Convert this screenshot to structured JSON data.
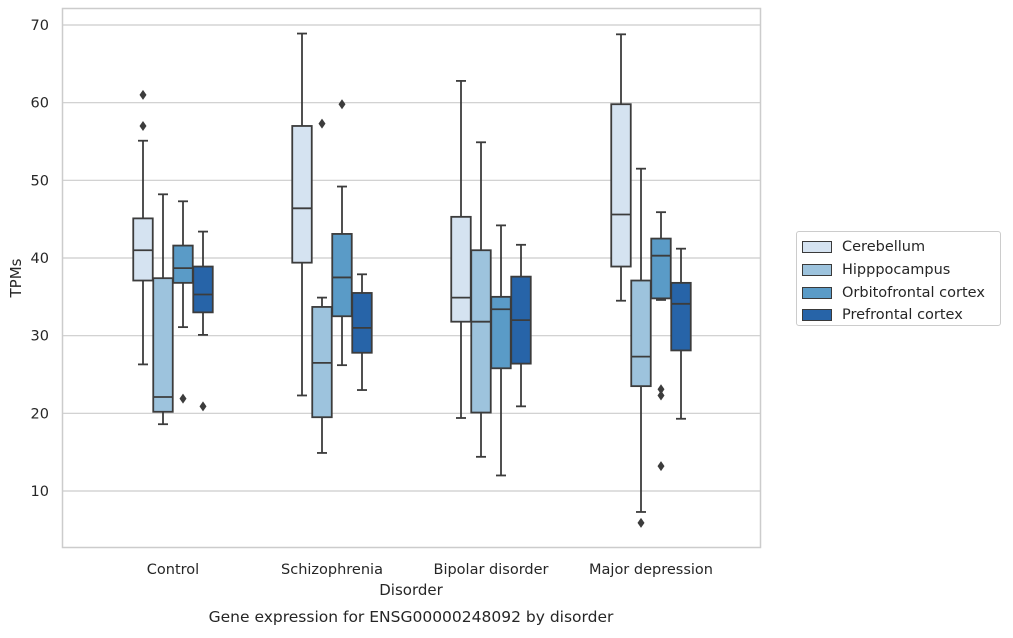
{
  "chart_data": {
    "type": "boxplot",
    "title": "Gene expression for ENSG00000248092 by disorder",
    "xlabel": "Disorder",
    "ylabel": "TPMs",
    "ylim": [
      2.5,
      72
    ],
    "yticks": [
      10,
      20,
      30,
      40,
      50,
      60,
      70
    ],
    "grid": "horizontal",
    "legend_placement": "center-right",
    "categories": [
      "Control",
      "Schizophrenia",
      "Bipolar disorder",
      "Major depression"
    ],
    "series": [
      {
        "name": "Cerebellum",
        "color": "#d5e3f1",
        "boxes": [
          {
            "whislo": 26.3,
            "q1": 37.1,
            "med": 41.0,
            "q3": 45.1,
            "whishi": 55.1,
            "fliers": [
              57.0,
              61.0
            ]
          },
          {
            "whislo": 22.3,
            "q1": 39.4,
            "med": 46.4,
            "q3": 57.0,
            "whishi": 68.9,
            "fliers": []
          },
          {
            "whislo": 19.4,
            "q1": 31.8,
            "med": 34.9,
            "q3": 45.3,
            "whishi": 62.8,
            "fliers": []
          },
          {
            "whislo": 34.5,
            "q1": 38.9,
            "med": 45.6,
            "q3": 59.8,
            "whishi": 68.8,
            "fliers": []
          }
        ]
      },
      {
        "name": "Hipppocampus",
        "color": "#9dc3dd",
        "boxes": [
          {
            "whislo": 18.6,
            "q1": 20.2,
            "med": 22.1,
            "q3": 37.4,
            "whishi": 48.2,
            "fliers": []
          },
          {
            "whislo": 14.9,
            "q1": 19.5,
            "med": 26.5,
            "q3": 33.7,
            "whishi": 34.9,
            "fliers": [
              57.3
            ]
          },
          {
            "whislo": 14.4,
            "q1": 20.1,
            "med": 31.8,
            "q3": 41.0,
            "whishi": 54.9,
            "fliers": []
          },
          {
            "whislo": 7.3,
            "q1": 23.5,
            "med": 27.3,
            "q3": 37.1,
            "whishi": 51.5,
            "fliers": [
              5.9
            ]
          }
        ]
      },
      {
        "name": "Orbitofrontal cortex",
        "color": "#5a9bc7",
        "boxes": [
          {
            "whislo": 31.1,
            "q1": 36.8,
            "med": 38.7,
            "q3": 41.6,
            "whishi": 47.3,
            "fliers": [
              21.9
            ]
          },
          {
            "whislo": 26.2,
            "q1": 32.5,
            "med": 37.5,
            "q3": 43.1,
            "whishi": 49.2,
            "fliers": [
              59.8
            ]
          },
          {
            "whislo": 12.0,
            "q1": 25.8,
            "med": 33.4,
            "q3": 35.0,
            "whishi": 44.2,
            "fliers": []
          },
          {
            "whislo": 34.6,
            "q1": 34.8,
            "med": 40.3,
            "q3": 42.5,
            "whishi": 45.9,
            "fliers": [
              23.1,
              22.3,
              13.2
            ]
          }
        ]
      },
      {
        "name": "Prefrontal cortex",
        "color": "#2764a8",
        "boxes": [
          {
            "whislo": 30.1,
            "q1": 33.0,
            "med": 35.3,
            "q3": 38.9,
            "whishi": 43.4,
            "fliers": [
              20.9
            ]
          },
          {
            "whislo": 23.0,
            "q1": 27.8,
            "med": 31.0,
            "q3": 35.5,
            "whishi": 37.9,
            "fliers": []
          },
          {
            "whislo": 20.9,
            "q1": 26.4,
            "med": 32.0,
            "q3": 37.6,
            "whishi": 41.7,
            "fliers": []
          },
          {
            "whislo": 19.3,
            "q1": 28.1,
            "med": 34.1,
            "q3": 36.8,
            "whishi": 41.2,
            "fliers": []
          }
        ]
      }
    ]
  }
}
